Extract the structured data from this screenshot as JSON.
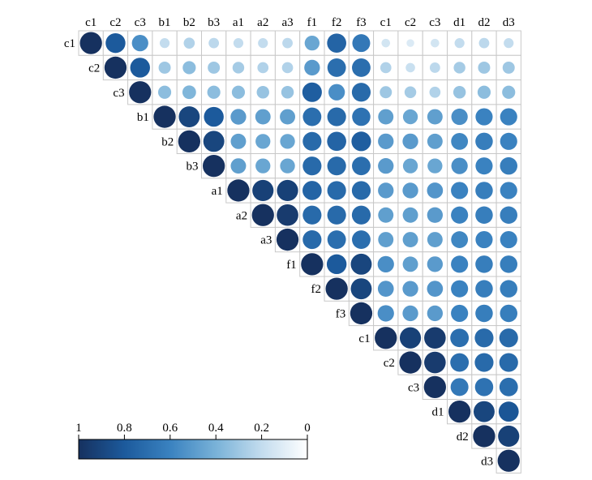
{
  "chart_data": {
    "type": "heatmap",
    "style": "correlation-matrix-upper-circles",
    "title": "",
    "variables": [
      "c1",
      "c2",
      "c3",
      "b1",
      "b2",
      "b3",
      "a1",
      "a2",
      "a3",
      "f1",
      "f2",
      "f3",
      "c1",
      "c2",
      "c3",
      "d1",
      "d2",
      "d3"
    ],
    "values": [
      [
        1.0,
        0.8,
        0.55,
        0.2,
        0.25,
        0.22,
        0.2,
        0.2,
        0.22,
        0.45,
        0.75,
        0.65,
        0.15,
        0.12,
        0.15,
        0.2,
        0.22,
        0.2
      ],
      [
        null,
        1.0,
        0.8,
        0.3,
        0.35,
        0.3,
        0.28,
        0.25,
        0.25,
        0.5,
        0.7,
        0.7,
        0.25,
        0.18,
        0.22,
        0.28,
        0.3,
        0.3
      ],
      [
        null,
        null,
        1.0,
        0.35,
        0.38,
        0.35,
        0.35,
        0.32,
        0.32,
        0.78,
        0.55,
        0.72,
        0.3,
        0.28,
        0.25,
        0.32,
        0.35,
        0.35
      ],
      [
        null,
        null,
        null,
        1.0,
        0.9,
        0.8,
        0.5,
        0.48,
        0.48,
        0.7,
        0.72,
        0.68,
        0.48,
        0.45,
        0.48,
        0.55,
        0.6,
        0.6
      ],
      [
        null,
        null,
        null,
        null,
        1.0,
        0.9,
        0.48,
        0.45,
        0.45,
        0.72,
        0.75,
        0.78,
        0.5,
        0.5,
        0.48,
        0.58,
        0.62,
        0.6
      ],
      [
        null,
        null,
        null,
        null,
        null,
        1.0,
        0.48,
        0.45,
        0.45,
        0.72,
        0.72,
        0.7,
        0.5,
        0.45,
        0.45,
        0.55,
        0.6,
        0.62
      ],
      [
        null,
        null,
        null,
        null,
        null,
        null,
        1.0,
        0.92,
        0.92,
        0.75,
        0.72,
        0.72,
        0.5,
        0.5,
        0.52,
        0.6,
        0.62,
        0.6
      ],
      [
        null,
        null,
        null,
        null,
        null,
        null,
        null,
        1.0,
        0.95,
        0.72,
        0.72,
        0.72,
        0.48,
        0.48,
        0.5,
        0.6,
        0.62,
        0.62
      ],
      [
        null,
        null,
        null,
        null,
        null,
        null,
        null,
        null,
        1.0,
        0.72,
        0.7,
        0.7,
        0.48,
        0.48,
        0.48,
        0.58,
        0.6,
        0.6
      ],
      [
        null,
        null,
        null,
        null,
        null,
        null,
        null,
        null,
        null,
        1.0,
        0.8,
        0.9,
        0.55,
        0.48,
        0.5,
        0.6,
        0.62,
        0.62
      ],
      [
        null,
        null,
        null,
        null,
        null,
        null,
        null,
        null,
        null,
        null,
        1.0,
        0.9,
        0.52,
        0.5,
        0.52,
        0.6,
        0.62,
        0.62
      ],
      [
        null,
        null,
        null,
        null,
        null,
        null,
        null,
        null,
        null,
        null,
        null,
        1.0,
        0.55,
        0.5,
        0.5,
        0.6,
        0.62,
        0.62
      ],
      [
        null,
        null,
        null,
        null,
        null,
        null,
        null,
        null,
        null,
        null,
        null,
        null,
        1.0,
        0.92,
        0.95,
        0.7,
        0.72,
        0.72
      ],
      [
        null,
        null,
        null,
        null,
        null,
        null,
        null,
        null,
        null,
        null,
        null,
        null,
        null,
        1.0,
        0.95,
        0.7,
        0.72,
        0.72
      ],
      [
        null,
        null,
        null,
        null,
        null,
        null,
        null,
        null,
        null,
        null,
        null,
        null,
        null,
        null,
        1.0,
        0.65,
        0.68,
        0.7
      ],
      [
        null,
        null,
        null,
        null,
        null,
        null,
        null,
        null,
        null,
        null,
        null,
        null,
        null,
        null,
        null,
        1.0,
        0.9,
        0.82
      ],
      [
        null,
        null,
        null,
        null,
        null,
        null,
        null,
        null,
        null,
        null,
        null,
        null,
        null,
        null,
        null,
        null,
        1.0,
        0.92
      ],
      [
        null,
        null,
        null,
        null,
        null,
        null,
        null,
        null,
        null,
        null,
        null,
        null,
        null,
        null,
        null,
        null,
        null,
        1.0
      ]
    ],
    "colorbar": {
      "ticks": [
        "1",
        "0.8",
        "0.6",
        "0.4",
        "0.2",
        "0"
      ],
      "tick_values": [
        1,
        0.8,
        0.6,
        0.4,
        0.2,
        0
      ],
      "range": [
        1,
        0
      ],
      "colors": [
        "#16315f",
        "#1c5a9c",
        "#3a82c0",
        "#79b2d8",
        "#c3dcee",
        "#ffffff"
      ],
      "placement": "bottom-left"
    },
    "grid": true,
    "marker": "circle"
  }
}
